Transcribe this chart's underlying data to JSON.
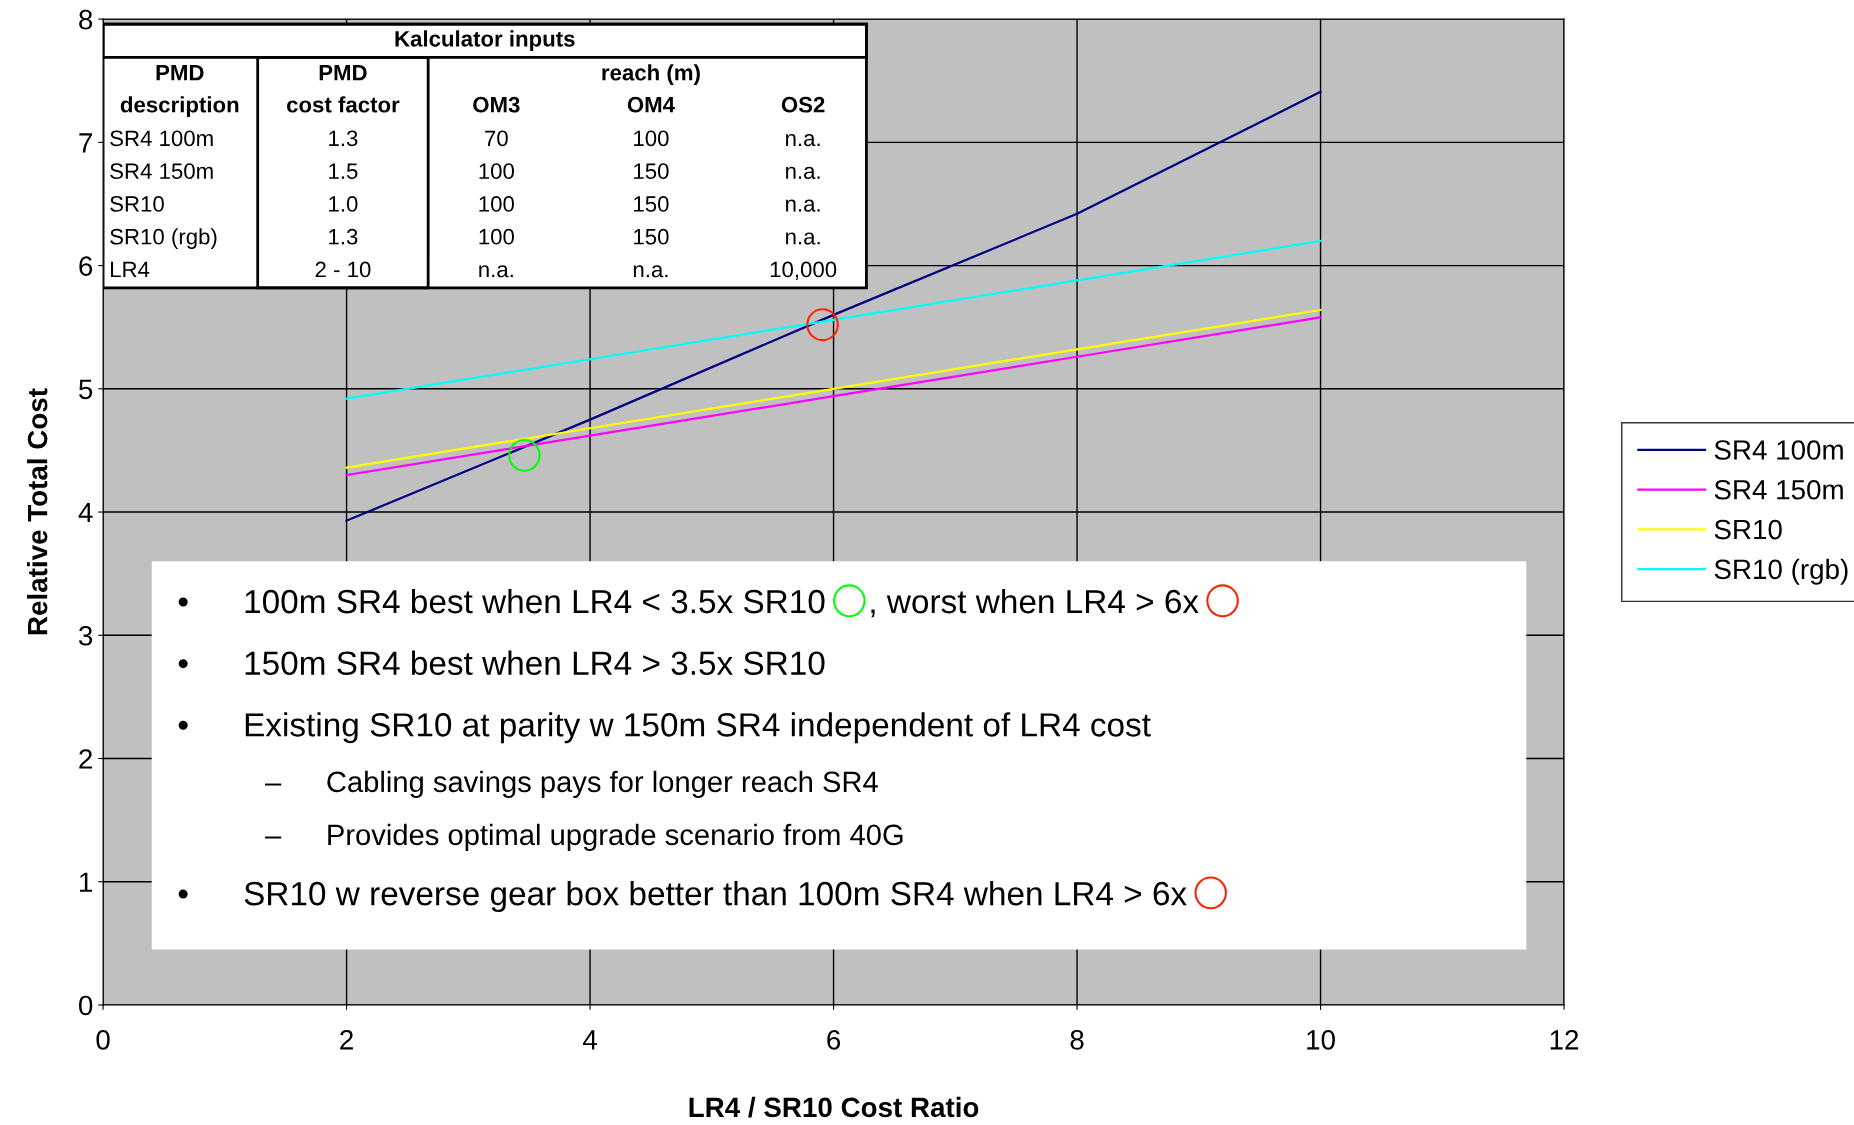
{
  "chart_data": {
    "type": "line",
    "xlabel": "LR4 / SR10 Cost Ratio",
    "ylabel": "Relative Total Cost",
    "x": [
      2,
      4,
      6,
      8,
      10
    ],
    "series": [
      {
        "name": "SR4 100m",
        "color": "#000080",
        "values": [
          3.93,
          4.75,
          5.6,
          6.42,
          7.41
        ]
      },
      {
        "name": "SR4 150m",
        "color": "#ff00ff",
        "values": [
          4.3,
          4.62,
          4.94,
          5.26,
          5.58
        ]
      },
      {
        "name": "SR10",
        "color": "#ffff00",
        "values": [
          4.36,
          4.68,
          5.0,
          5.32,
          5.64
        ]
      },
      {
        "name": "SR10 (rgb)",
        "color": "#00ffff",
        "values": [
          4.92,
          5.24,
          5.56,
          5.88,
          6.2
        ]
      }
    ],
    "xlim": [
      0,
      12
    ],
    "xticks": [
      0,
      2,
      4,
      6,
      8,
      10,
      12
    ],
    "ylim": [
      0,
      8
    ],
    "yticks": [
      0,
      1,
      2,
      3,
      4,
      5,
      6,
      7,
      8
    ],
    "grid": true,
    "legend": "right",
    "marker": "none",
    "line_style": "solid",
    "annotations": [
      "Kalculator inputs",
      "PMD",
      "description",
      "PMD",
      "cost factor",
      "reach (m)",
      "OM3",
      "OM4",
      "OS2",
      "SR4 100m",
      "1.3",
      "70",
      "100",
      "n.a.",
      "SR4 150m",
      "1.5",
      "100",
      "150",
      "n.a.",
      "SR10",
      "1.0",
      "100",
      "150",
      "n.a.",
      "SR10 (rgb)",
      "1.3",
      "100",
      "150",
      "n.a.",
      "LR4",
      "2 - 10",
      "n.a.",
      "n.a.",
      "10,000",
      "•",
      "100m SR4 best when LR4 < 3.5x SR10",
      ", worst when LR4 > 6x",
      "•",
      "150m SR4 best when LR4 > 3.5x SR10",
      "•",
      "Existing SR10 at parity w 150m SR4 independent of LR4 cost",
      "–",
      "Cabling savings pays for longer reach SR4",
      "–",
      "Provides optimal upgrade scenario from 40G",
      "•",
      "SR10 w reverse gear box better than 100m SR4 when LR4 > 6x"
    ]
  }
}
